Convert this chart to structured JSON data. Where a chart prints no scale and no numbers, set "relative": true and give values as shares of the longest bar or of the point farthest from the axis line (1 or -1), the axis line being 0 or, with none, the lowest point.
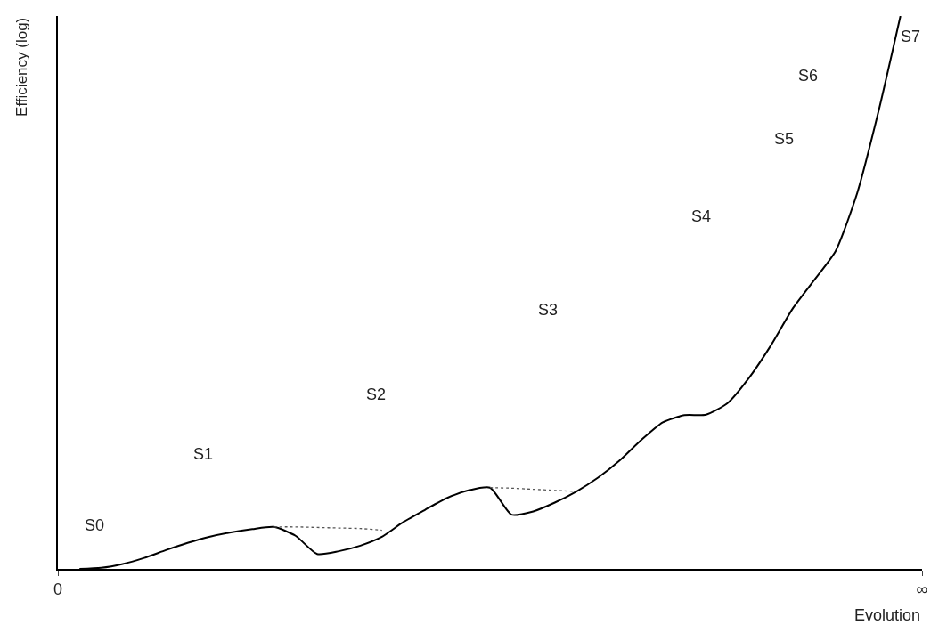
{
  "chart_data": {
    "type": "line",
    "relative": true,
    "xlabel": "Evolution",
    "ylabel": "Efficiency (log)",
    "marker": "none",
    "categories": [
      "0",
      null,
      null,
      null,
      null,
      null,
      null,
      null,
      null,
      null,
      null,
      null,
      null,
      null,
      null,
      null,
      null,
      null,
      null,
      null,
      null,
      null,
      null,
      null,
      null,
      null,
      null,
      null,
      null,
      null,
      null,
      null,
      null,
      null,
      null,
      null,
      null,
      null,
      null,
      null,
      "∞"
    ],
    "series": [
      {
        "color": "#000000",
        "line_style": "solid",
        "values": [
          null,
          0,
          0.002,
          0.009,
          0.02,
          0.034,
          0.047,
          0.058,
          0.066,
          0.072,
          0.076,
          0.06,
          0.027,
          0.032,
          0.042,
          0.058,
          0.085,
          0.107,
          0.128,
          0.142,
          0.147,
          0.098,
          0.104,
          0.12,
          0.14,
          0.165,
          0.196,
          0.233,
          0.265,
          0.278,
          0.279,
          0.3,
          0.346,
          0.404,
          0.47,
          0.522,
          0.575,
          0.68,
          0.83,
          1,
          null
        ]
      },
      {
        "color": "#555555",
        "line_style": "dotted",
        "values": [
          null,
          null,
          null,
          null,
          null,
          null,
          null,
          null,
          null,
          null,
          0.076,
          0.076,
          0.075,
          0.074,
          0.073,
          0.07,
          null,
          null,
          null,
          null,
          null,
          null,
          null,
          null,
          null,
          null,
          null,
          null,
          null,
          null,
          null,
          null,
          null,
          null,
          null,
          null,
          null,
          null,
          null,
          null,
          null
        ]
      },
      {
        "color": "#555555",
        "line_style": "dotted",
        "values": [
          null,
          null,
          null,
          null,
          null,
          null,
          null,
          null,
          null,
          null,
          null,
          null,
          null,
          null,
          null,
          null,
          null,
          null,
          null,
          null,
          0.147,
          0.146,
          0.144,
          0.142,
          0.14,
          null,
          null,
          null,
          null,
          null,
          null,
          null,
          null,
          null,
          null,
          null,
          null,
          null,
          null,
          null,
          null
        ]
      }
    ],
    "annotations": [
      "S0",
      "S1",
      "S2",
      "S3",
      "S4",
      "S5",
      "S6",
      "S7"
    ]
  }
}
